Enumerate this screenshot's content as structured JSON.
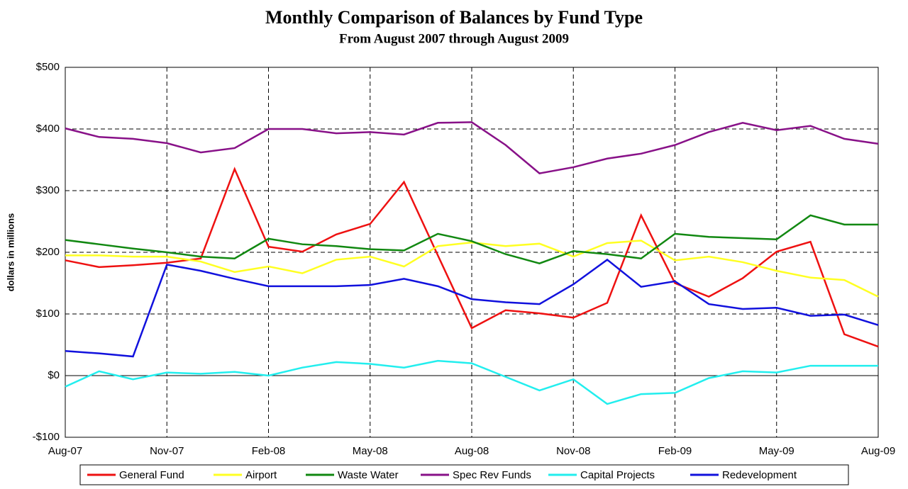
{
  "chart_data": {
    "type": "line",
    "title": "Monthly Comparison of Balances by Fund Type",
    "subtitle": "From August 2007 through August 2009",
    "y_label": "dollars in millions",
    "categories": [
      "Aug-07",
      null,
      null,
      "Nov-07",
      null,
      null,
      "Feb-08",
      null,
      null,
      "May-08",
      null,
      null,
      "Aug-08",
      null,
      null,
      "Nov-08",
      null,
      null,
      "Feb-09",
      null,
      null,
      "May-09",
      null,
      null,
      "Aug-09"
    ],
    "ylim": [
      -100,
      500
    ],
    "yticks": [
      {
        "value": -100,
        "label": "-$100"
      },
      {
        "value": 0,
        "label": "$0"
      },
      {
        "value": 100,
        "label": "$100"
      },
      {
        "value": 200,
        "label": "$200"
      },
      {
        "value": 300,
        "label": "$300"
      },
      {
        "value": 400,
        "label": "$400"
      },
      {
        "value": 500,
        "label": "$500"
      }
    ],
    "grid": true,
    "legend": "bottom",
    "series": [
      {
        "name": "General Fund",
        "color": "#ee1111",
        "values": [
          187,
          176,
          179,
          183,
          190,
          335,
          209,
          201,
          229,
          246,
          314,
          195,
          77,
          106,
          101,
          94,
          118,
          260,
          150,
          128,
          158,
          201,
          217,
          67,
          47
        ]
      },
      {
        "name": "Airport",
        "color": "#ffff22",
        "values": [
          195,
          195,
          193,
          193,
          185,
          168,
          177,
          166,
          188,
          193,
          177,
          210,
          216,
          210,
          214,
          193,
          215,
          219,
          187,
          193,
          184,
          170,
          159,
          155,
          128
        ]
      },
      {
        "name": "Waste Water",
        "color": "#118811",
        "values": [
          220,
          213,
          206,
          200,
          193,
          190,
          222,
          213,
          210,
          205,
          203,
          230,
          218,
          197,
          182,
          202,
          197,
          190,
          230,
          225,
          223,
          221,
          260,
          245,
          245
        ]
      },
      {
        "name": "Spec Rev Funds",
        "color": "#881188",
        "values": [
          401,
          387,
          384,
          377,
          362,
          369,
          400,
          400,
          393,
          395,
          391,
          410,
          411,
          374,
          328,
          338,
          352,
          360,
          374,
          395,
          410,
          398,
          405,
          384,
          376
        ]
      },
      {
        "name": "Capital Projects",
        "color": "#22eeee",
        "values": [
          -18,
          7,
          -6,
          5,
          3,
          6,
          0,
          13,
          22,
          19,
          13,
          24,
          20,
          -2,
          -24,
          -6,
          -46,
          -30,
          -28,
          -4,
          7,
          5,
          16,
          16,
          16
        ]
      },
      {
        "name": "Redevelopment",
        "color": "#1111dd",
        "values": [
          40,
          36,
          31,
          180,
          170,
          157,
          145,
          145,
          145,
          147,
          157,
          145,
          124,
          119,
          116,
          148,
          188,
          144,
          153,
          116,
          108,
          110,
          97,
          99,
          82
        ]
      }
    ]
  }
}
